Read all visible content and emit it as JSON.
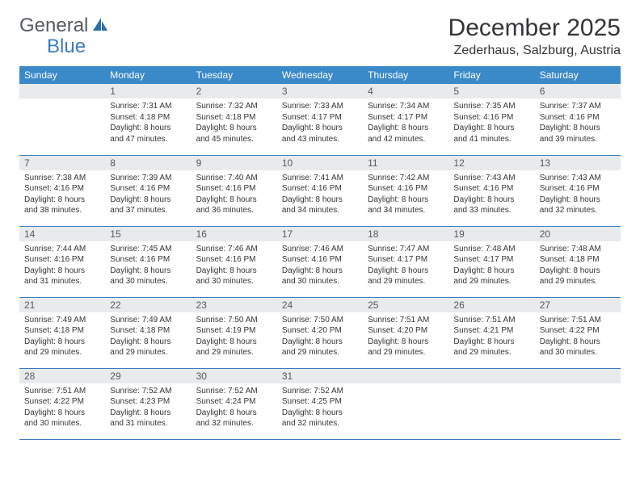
{
  "logo": {
    "text1": "General",
    "text2": "Blue"
  },
  "title": "December 2025",
  "location": "Zederhaus, Salzburg, Austria",
  "colors": {
    "header_bg": "#3a89c9",
    "header_text": "#ffffff",
    "daynum_bg": "#e8eaec",
    "daynum_text": "#555a60",
    "border": "#3a7cbf",
    "body_text": "#333538",
    "logo_gray": "#555a60",
    "logo_blue": "#3a7cbf"
  },
  "weekdays": [
    "Sunday",
    "Monday",
    "Tuesday",
    "Wednesday",
    "Thursday",
    "Friday",
    "Saturday"
  ],
  "start_offset": 1,
  "days": [
    {
      "n": 1,
      "sr": "7:31 AM",
      "ss": "4:18 PM",
      "dl": "8 hours and 47 minutes."
    },
    {
      "n": 2,
      "sr": "7:32 AM",
      "ss": "4:18 PM",
      "dl": "8 hours and 45 minutes."
    },
    {
      "n": 3,
      "sr": "7:33 AM",
      "ss": "4:17 PM",
      "dl": "8 hours and 43 minutes."
    },
    {
      "n": 4,
      "sr": "7:34 AM",
      "ss": "4:17 PM",
      "dl": "8 hours and 42 minutes."
    },
    {
      "n": 5,
      "sr": "7:35 AM",
      "ss": "4:16 PM",
      "dl": "8 hours and 41 minutes."
    },
    {
      "n": 6,
      "sr": "7:37 AM",
      "ss": "4:16 PM",
      "dl": "8 hours and 39 minutes."
    },
    {
      "n": 7,
      "sr": "7:38 AM",
      "ss": "4:16 PM",
      "dl": "8 hours and 38 minutes."
    },
    {
      "n": 8,
      "sr": "7:39 AM",
      "ss": "4:16 PM",
      "dl": "8 hours and 37 minutes."
    },
    {
      "n": 9,
      "sr": "7:40 AM",
      "ss": "4:16 PM",
      "dl": "8 hours and 36 minutes."
    },
    {
      "n": 10,
      "sr": "7:41 AM",
      "ss": "4:16 PM",
      "dl": "8 hours and 34 minutes."
    },
    {
      "n": 11,
      "sr": "7:42 AM",
      "ss": "4:16 PM",
      "dl": "8 hours and 34 minutes."
    },
    {
      "n": 12,
      "sr": "7:43 AM",
      "ss": "4:16 PM",
      "dl": "8 hours and 33 minutes."
    },
    {
      "n": 13,
      "sr": "7:43 AM",
      "ss": "4:16 PM",
      "dl": "8 hours and 32 minutes."
    },
    {
      "n": 14,
      "sr": "7:44 AM",
      "ss": "4:16 PM",
      "dl": "8 hours and 31 minutes."
    },
    {
      "n": 15,
      "sr": "7:45 AM",
      "ss": "4:16 PM",
      "dl": "8 hours and 30 minutes."
    },
    {
      "n": 16,
      "sr": "7:46 AM",
      "ss": "4:16 PM",
      "dl": "8 hours and 30 minutes."
    },
    {
      "n": 17,
      "sr": "7:46 AM",
      "ss": "4:16 PM",
      "dl": "8 hours and 30 minutes."
    },
    {
      "n": 18,
      "sr": "7:47 AM",
      "ss": "4:17 PM",
      "dl": "8 hours and 29 minutes."
    },
    {
      "n": 19,
      "sr": "7:48 AM",
      "ss": "4:17 PM",
      "dl": "8 hours and 29 minutes."
    },
    {
      "n": 20,
      "sr": "7:48 AM",
      "ss": "4:18 PM",
      "dl": "8 hours and 29 minutes."
    },
    {
      "n": 21,
      "sr": "7:49 AM",
      "ss": "4:18 PM",
      "dl": "8 hours and 29 minutes."
    },
    {
      "n": 22,
      "sr": "7:49 AM",
      "ss": "4:18 PM",
      "dl": "8 hours and 29 minutes."
    },
    {
      "n": 23,
      "sr": "7:50 AM",
      "ss": "4:19 PM",
      "dl": "8 hours and 29 minutes."
    },
    {
      "n": 24,
      "sr": "7:50 AM",
      "ss": "4:20 PM",
      "dl": "8 hours and 29 minutes."
    },
    {
      "n": 25,
      "sr": "7:51 AM",
      "ss": "4:20 PM",
      "dl": "8 hours and 29 minutes."
    },
    {
      "n": 26,
      "sr": "7:51 AM",
      "ss": "4:21 PM",
      "dl": "8 hours and 29 minutes."
    },
    {
      "n": 27,
      "sr": "7:51 AM",
      "ss": "4:22 PM",
      "dl": "8 hours and 30 minutes."
    },
    {
      "n": 28,
      "sr": "7:51 AM",
      "ss": "4:22 PM",
      "dl": "8 hours and 30 minutes."
    },
    {
      "n": 29,
      "sr": "7:52 AM",
      "ss": "4:23 PM",
      "dl": "8 hours and 31 minutes."
    },
    {
      "n": 30,
      "sr": "7:52 AM",
      "ss": "4:24 PM",
      "dl": "8 hours and 32 minutes."
    },
    {
      "n": 31,
      "sr": "7:52 AM",
      "ss": "4:25 PM",
      "dl": "8 hours and 32 minutes."
    }
  ],
  "labels": {
    "sunrise": "Sunrise:",
    "sunset": "Sunset:",
    "daylight": "Daylight:"
  }
}
